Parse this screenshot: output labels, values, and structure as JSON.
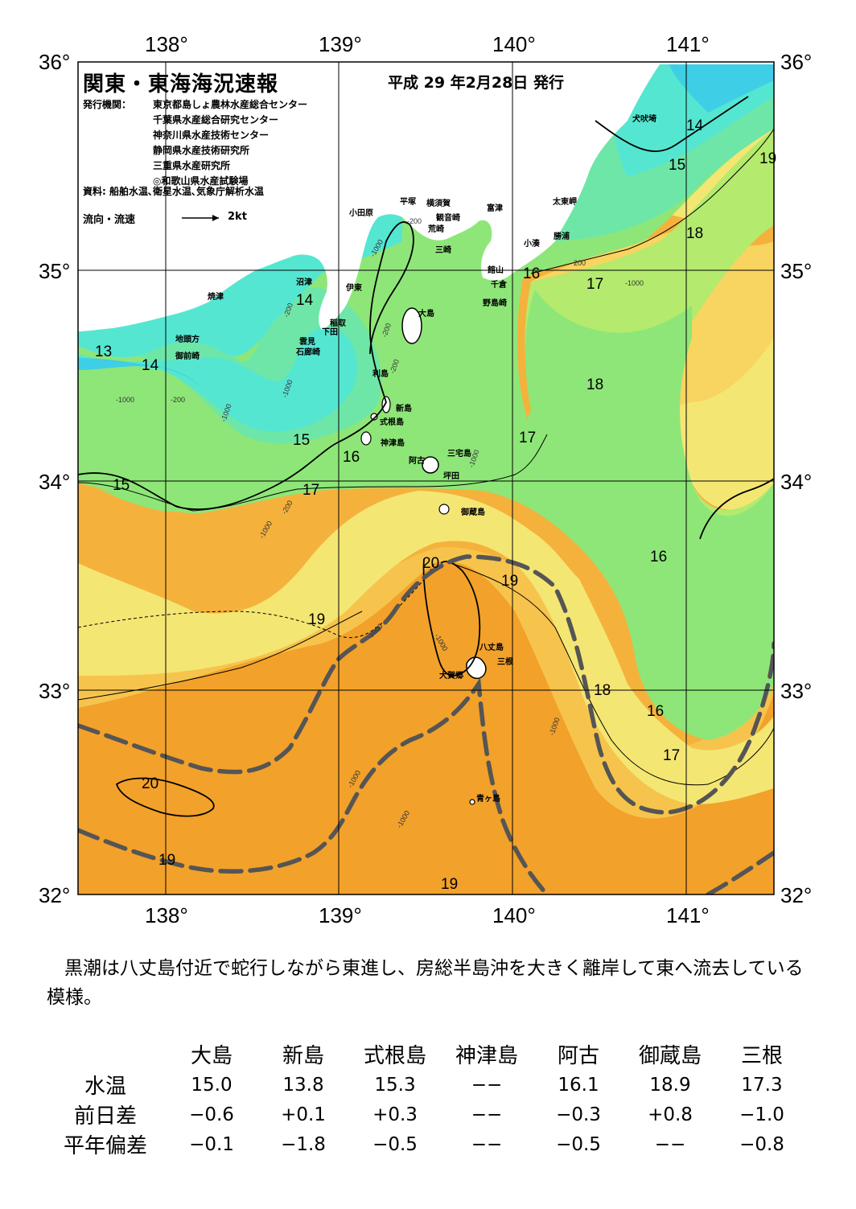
{
  "header": {
    "title": "関東・東海海況速報",
    "issue_date": "平成 29 年2月28日 発行",
    "agency_label": "発行機関：",
    "agencies": [
      "東京都島しょ農林水産総合センター",
      "千葉県水産総合研究センター",
      "神奈川県水産技術センター",
      "静岡県水産技術研究所",
      "三重県水産研究所",
      "◎和歌山県水産試験場"
    ],
    "sources": "資料: 船舶水温､衛星水温､気象庁解析水温",
    "legend_label": "流向・流速",
    "legend_scale": "2kt"
  },
  "map": {
    "lon_ticks_top": [
      "138°",
      "139°",
      "140°",
      "141°"
    ],
    "lon_ticks_bottom": [
      "138°",
      "139°",
      "140°",
      "141°"
    ],
    "lat_ticks_left": [
      "36°",
      "35°",
      "34°",
      "33°",
      "32°"
    ],
    "lat_ticks_right": [
      "36°",
      "35°",
      "34°",
      "33°",
      "32°"
    ],
    "place_names": {
      "inubosaki": "犬吠埼",
      "taitomisaki": "太東岬",
      "katsuura": "勝浦",
      "kominato": "小湊",
      "tomiura": "富津",
      "yokosuka": "横須賀",
      "kannonzaki": "観音崎",
      "hiratsuka": "平塚",
      "odawara": "小田原",
      "arasaki": "荒崎",
      "misaki": "三崎",
      "tateyama": "館山",
      "chikura": "千倉",
      "nojimazaki": "野島崎",
      "numazu": "沼津",
      "ito": "伊東",
      "inatori": "稲取",
      "shimoda": "下田",
      "kumomi": "雲見",
      "irozaki": "石廊崎",
      "yaizu": "焼津",
      "jitokata": "地頭方",
      "omaezaki": "御前崎",
      "oshima": "大島",
      "toshima": "利島",
      "niijima": "新島",
      "shikinejima": "式根島",
      "kozushima": "神津島",
      "miyakejima": "三宅島",
      "ako": "阿古",
      "tsubota": "坪田",
      "mikurajima": "御蔵島",
      "hachijojima": "八丈島",
      "mitsune": "三根",
      "okago": "大賀郷",
      "aogashima": "青ヶ島"
    },
    "isotherm_labels": [
      "13",
      "14",
      "14",
      "14",
      "14",
      "15",
      "15",
      "15",
      "15",
      "16",
      "16",
      "16",
      "16",
      "17",
      "17",
      "17",
      "17",
      "18",
      "18",
      "18",
      "18",
      "19",
      "19",
      "19",
      "19",
      "19",
      "20",
      "20"
    ],
    "depth_labels": [
      "-200",
      "-200",
      "-200",
      "-200",
      "-200",
      "-200",
      "-200",
      "-1000",
      "-1000",
      "-1000",
      "-1000",
      "-1000",
      "-1000",
      "-1000",
      "-1000",
      "-1000",
      "-1000",
      "-1000",
      "-1000"
    ]
  },
  "summary": "黒潮は八丈島付近で蛇行しながら東進し、房総半島沖を大きく離岸して東へ流去している模様。",
  "table": {
    "columns": [
      "大島",
      "新島",
      "式根島",
      "神津島",
      "阿古",
      "御蔵島",
      "三根"
    ],
    "rows": [
      {
        "label": "水温",
        "values": [
          "15.0",
          "13.8",
          "15.3",
          "−−",
          "16.1",
          "18.9",
          "17.3"
        ]
      },
      {
        "label": "前日差",
        "values": [
          "−0.6",
          "+0.1",
          "+0.3",
          "−−",
          "−0.3",
          "+0.8",
          "−1.0"
        ]
      },
      {
        "label": "平年偏差",
        "values": [
          "−0.1",
          "−1.8",
          "−0.5",
          "−−",
          "−0.5",
          "−−",
          "−0.8"
        ]
      }
    ]
  },
  "colors": {
    "t13": "#3ecfe6",
    "t14": "#55e6d2",
    "t15": "#6ee6a8",
    "t16": "#8ee678",
    "t17": "#b4ea6e",
    "t18": "#f4e673",
    "t18b": "#f8d460",
    "t19": "#f6c44c",
    "t19b": "#f4b23c",
    "t20": "#f2a12a",
    "kuroshio_axis": "#555555",
    "land": "#ffffff"
  }
}
